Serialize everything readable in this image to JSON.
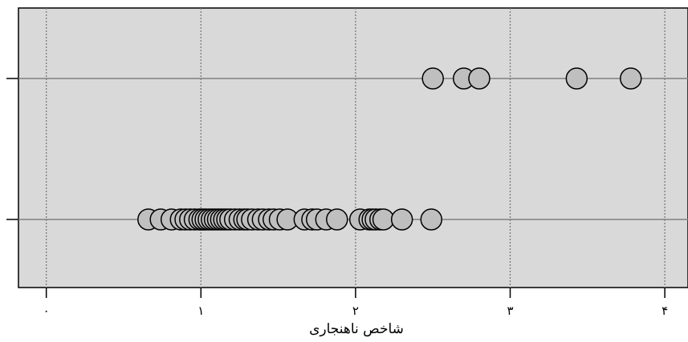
{
  "chart_data": {
    "type": "scatter",
    "xlabel": "شاخص ناهنجاری",
    "xlim": [
      -0.18,
      4.15
    ],
    "x_ticks": [
      0,
      1,
      2,
      3,
      4
    ],
    "x_tick_labels": [
      "۰",
      "۱",
      "۲",
      "۳",
      "۴"
    ],
    "grid": true,
    "background": "#d9d9d9",
    "marker_color": "#bfbfbf",
    "series": [
      {
        "row": 2,
        "x": [
          2.5,
          2.7,
          2.8,
          3.43,
          3.78
        ]
      },
      {
        "row": 1,
        "x": [
          0.66,
          0.74,
          0.81,
          0.87,
          0.9,
          0.93,
          0.96,
          0.99,
          1.01,
          1.03,
          1.05,
          1.07,
          1.09,
          1.11,
          1.13,
          1.15,
          1.17,
          1.19,
          1.22,
          1.25,
          1.28,
          1.3,
          1.33,
          1.37,
          1.4,
          1.44,
          1.47,
          1.51,
          1.56,
          1.67,
          1.72,
          1.75,
          1.81,
          1.88,
          2.03,
          2.09,
          2.11,
          2.13,
          2.16,
          2.18,
          2.3,
          2.49
        ]
      }
    ]
  }
}
